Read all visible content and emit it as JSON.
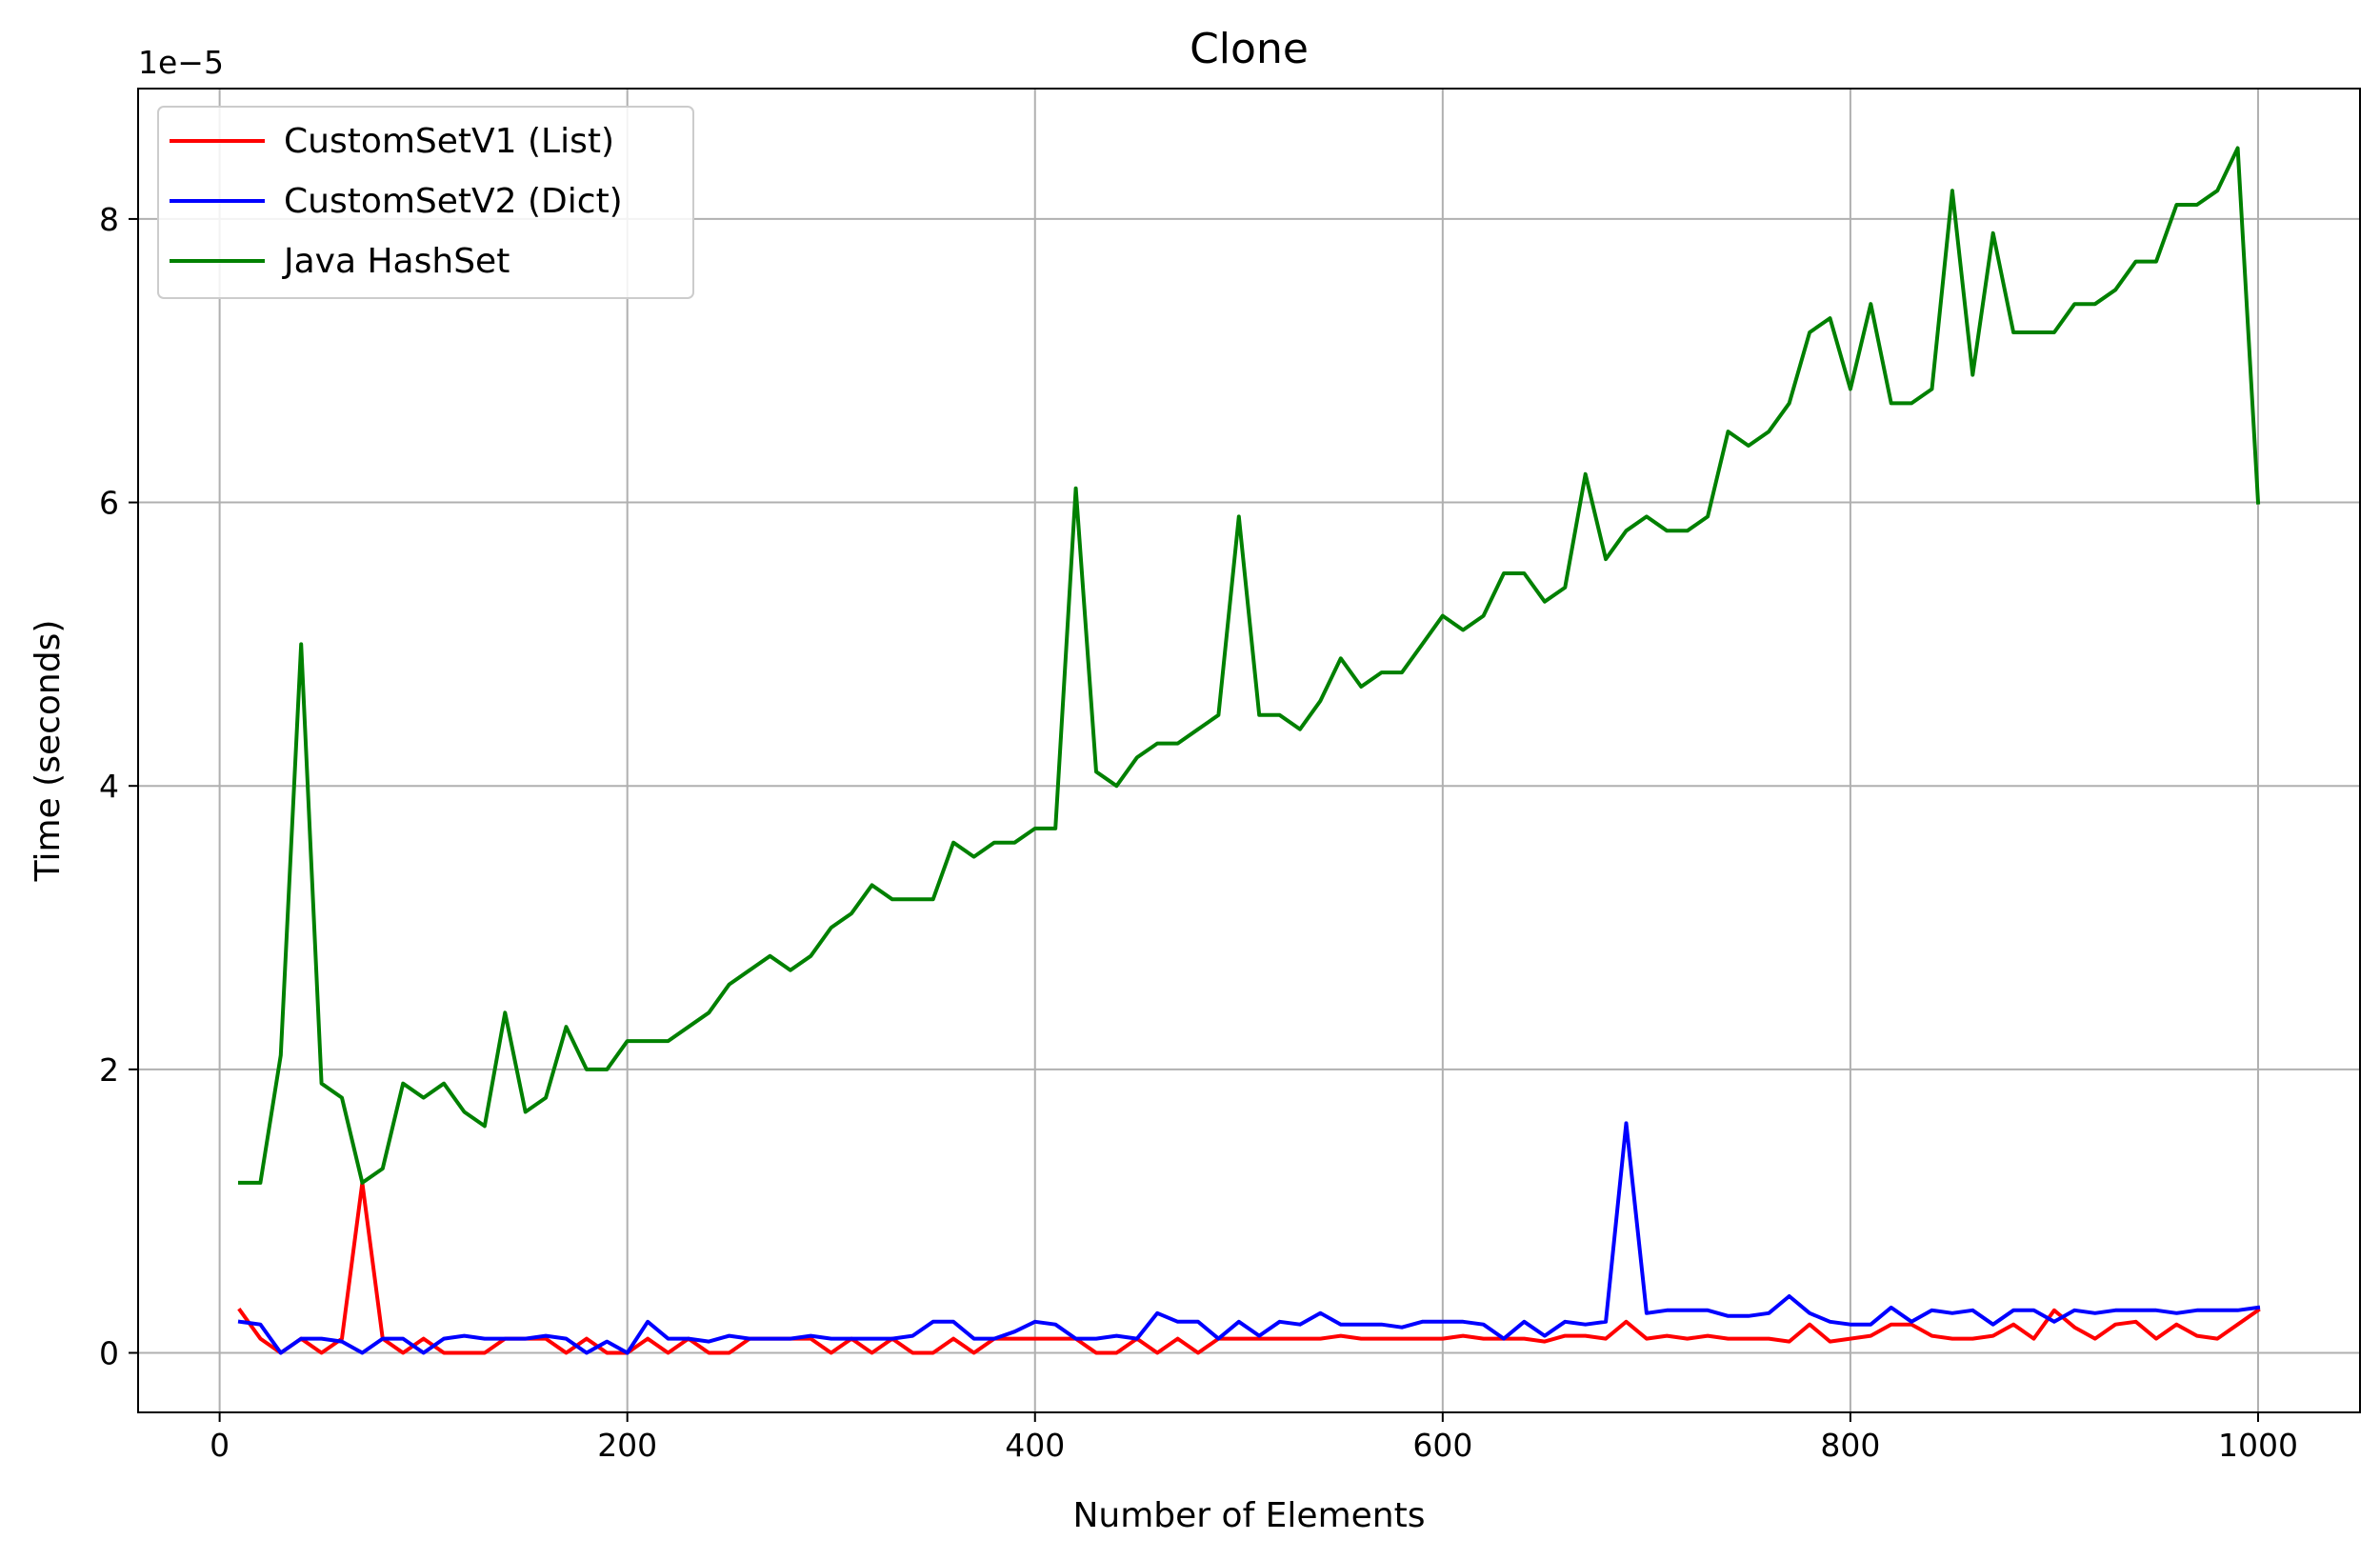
{
  "chart_data": {
    "type": "line",
    "title": "Clone",
    "xlabel": "Number of Elements",
    "ylabel": "Time (seconds)",
    "y_offset_label": "1e−5",
    "xlim": [
      -40,
      1050
    ],
    "ylim": [
      -0.42,
      8.92
    ],
    "xticks": [
      0,
      200,
      400,
      600,
      800,
      1000
    ],
    "yticks": [
      0,
      2,
      4,
      6,
      8
    ],
    "grid": true,
    "legend_position": "upper-left",
    "x": [
      10,
      20,
      30,
      40,
      50,
      60,
      70,
      80,
      90,
      100,
      110,
      120,
      130,
      140,
      150,
      160,
      170,
      180,
      190,
      200,
      210,
      220,
      230,
      240,
      250,
      260,
      270,
      280,
      290,
      300,
      310,
      320,
      330,
      340,
      350,
      360,
      370,
      380,
      390,
      400,
      410,
      420,
      430,
      440,
      450,
      460,
      470,
      480,
      490,
      500,
      510,
      520,
      530,
      540,
      550,
      560,
      570,
      580,
      590,
      600,
      610,
      620,
      630,
      640,
      650,
      660,
      670,
      680,
      690,
      700,
      710,
      720,
      730,
      740,
      750,
      760,
      770,
      780,
      790,
      800,
      810,
      820,
      830,
      840,
      850,
      860,
      870,
      880,
      890,
      900,
      910,
      920,
      930,
      940,
      950,
      960,
      970,
      980,
      990,
      1000
    ],
    "series": [
      {
        "name": "CustomSetV1 (List)",
        "color": "#ff0000",
        "values": [
          0.3,
          0.1,
          0.0,
          0.1,
          0.0,
          0.1,
          1.2,
          0.1,
          0.0,
          0.1,
          0.0,
          0.0,
          0.0,
          0.1,
          0.1,
          0.1,
          0.0,
          0.1,
          0.0,
          0.0,
          0.1,
          0.0,
          0.1,
          0.0,
          0.0,
          0.1,
          0.1,
          0.1,
          0.1,
          0.0,
          0.1,
          0.0,
          0.1,
          0.0,
          0.0,
          0.1,
          0.0,
          0.1,
          0.1,
          0.1,
          0.1,
          0.1,
          0.0,
          0.0,
          0.1,
          0.0,
          0.1,
          0.0,
          0.1,
          0.1,
          0.1,
          0.1,
          0.1,
          0.1,
          0.12,
          0.1,
          0.1,
          0.1,
          0.1,
          0.1,
          0.12,
          0.1,
          0.1,
          0.1,
          0.08,
          0.12,
          0.12,
          0.1,
          0.22,
          0.1,
          0.12,
          0.1,
          0.12,
          0.1,
          0.1,
          0.1,
          0.08,
          0.2,
          0.08,
          0.1,
          0.12,
          0.2,
          0.2,
          0.12,
          0.1,
          0.1,
          0.12,
          0.2,
          0.1,
          0.3,
          0.18,
          0.1,
          0.2,
          0.22,
          0.1,
          0.2,
          0.12,
          0.1,
          0.2,
          0.3
        ]
      },
      {
        "name": "CustomSetV2 (Dict)",
        "color": "#0000ff",
        "values": [
          0.22,
          0.2,
          0.0,
          0.1,
          0.1,
          0.08,
          0.0,
          0.1,
          0.1,
          0.0,
          0.1,
          0.12,
          0.1,
          0.1,
          0.1,
          0.12,
          0.1,
          0.0,
          0.08,
          0.0,
          0.22,
          0.1,
          0.1,
          0.08,
          0.12,
          0.1,
          0.1,
          0.1,
          0.12,
          0.1,
          0.1,
          0.1,
          0.1,
          0.12,
          0.22,
          0.22,
          0.1,
          0.1,
          0.15,
          0.22,
          0.2,
          0.1,
          0.1,
          0.12,
          0.1,
          0.28,
          0.22,
          0.22,
          0.1,
          0.22,
          0.12,
          0.22,
          0.2,
          0.28,
          0.2,
          0.2,
          0.2,
          0.18,
          0.22,
          0.22,
          0.22,
          0.2,
          0.1,
          0.22,
          0.12,
          0.22,
          0.2,
          0.22,
          1.62,
          0.28,
          0.3,
          0.3,
          0.3,
          0.26,
          0.26,
          0.28,
          0.4,
          0.28,
          0.22,
          0.2,
          0.2,
          0.32,
          0.22,
          0.3,
          0.28,
          0.3,
          0.2,
          0.3,
          0.3,
          0.22,
          0.3,
          0.28,
          0.3,
          0.3,
          0.3,
          0.28,
          0.3,
          0.3,
          0.3,
          0.32
        ]
      },
      {
        "name": "Java HashSet",
        "color": "#008000",
        "values": [
          1.2,
          1.2,
          2.1,
          5.0,
          1.9,
          1.8,
          1.2,
          1.3,
          1.9,
          1.8,
          1.9,
          1.7,
          1.6,
          2.4,
          1.7,
          1.8,
          2.3,
          2.0,
          2.0,
          2.2,
          2.2,
          2.2,
          2.3,
          2.4,
          2.6,
          2.7,
          2.8,
          2.7,
          2.8,
          3.0,
          3.1,
          3.3,
          3.2,
          3.2,
          3.2,
          3.6,
          3.5,
          3.6,
          3.6,
          3.7,
          3.7,
          6.1,
          4.1,
          4.0,
          4.2,
          4.3,
          4.3,
          4.4,
          4.5,
          5.9,
          4.5,
          4.5,
          4.4,
          4.6,
          4.9,
          4.7,
          4.8,
          4.8,
          5.0,
          5.2,
          5.1,
          5.2,
          5.5,
          5.5,
          5.3,
          5.4,
          6.2,
          5.6,
          5.8,
          5.9,
          5.8,
          5.8,
          5.9,
          6.5,
          6.4,
          6.5,
          6.7,
          7.2,
          7.3,
          6.8,
          7.4,
          6.7,
          6.7,
          6.8,
          8.2,
          6.9,
          7.9,
          7.2,
          7.2,
          7.2,
          7.4,
          7.4,
          7.5,
          7.7,
          7.7,
          8.1,
          8.1,
          8.2,
          8.5,
          6.0
        ]
      }
    ]
  }
}
